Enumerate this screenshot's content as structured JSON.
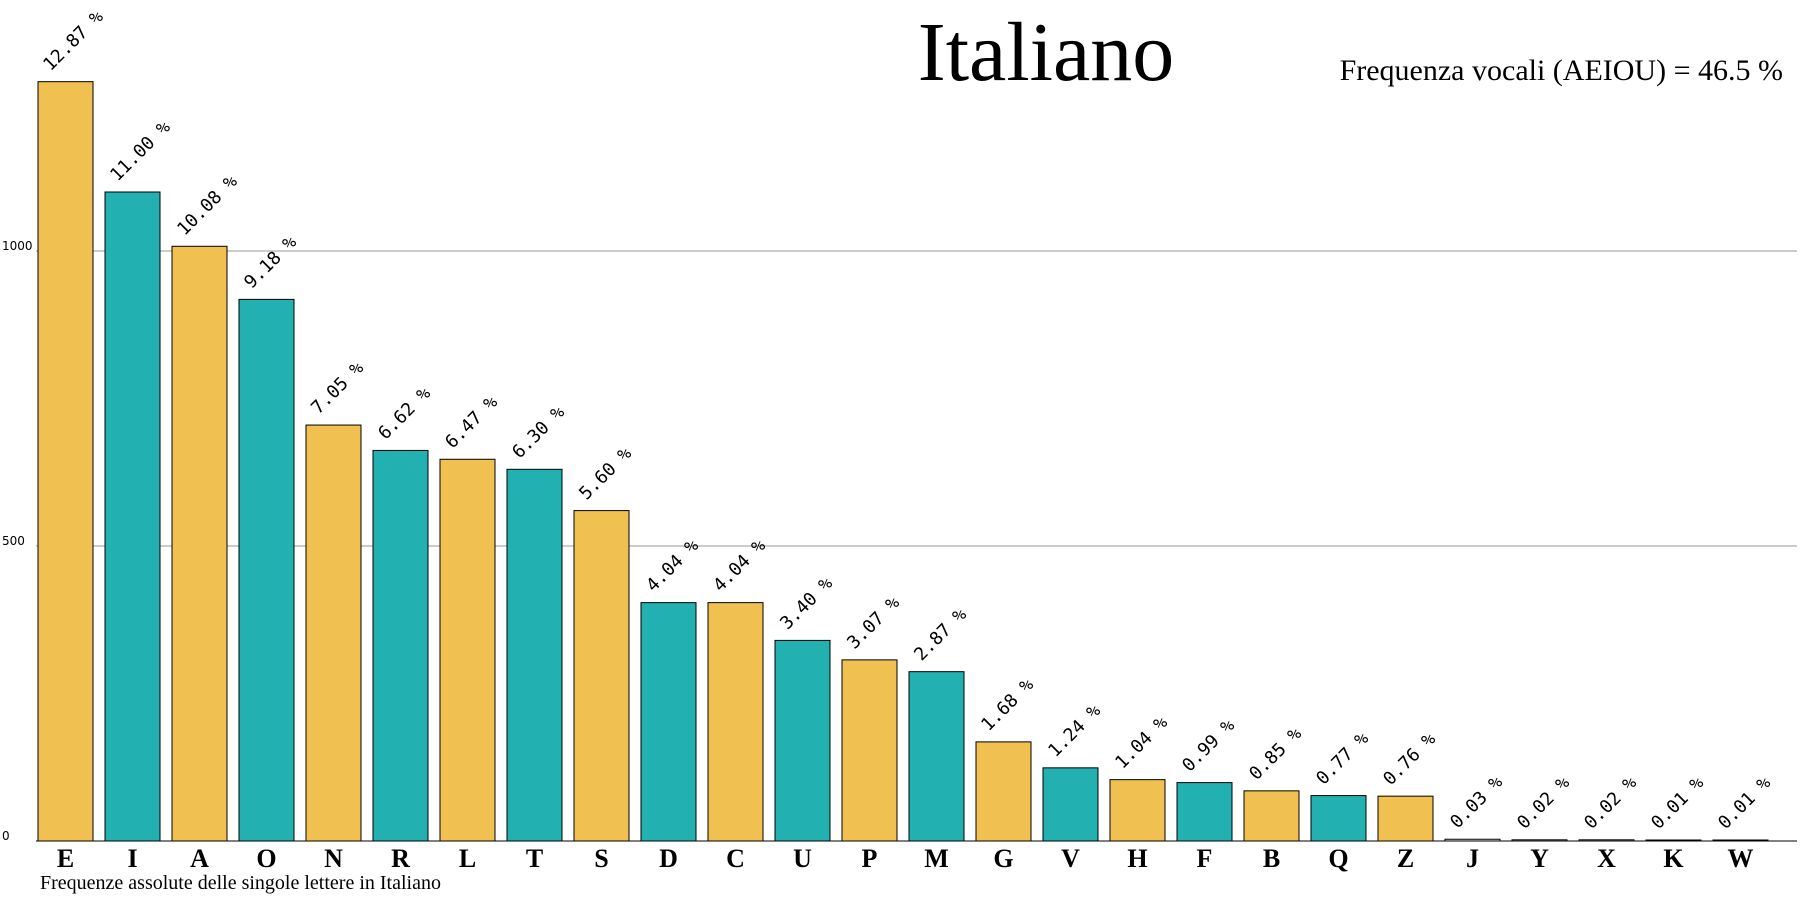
{
  "chart_data": {
    "type": "bar",
    "title": "Italiano",
    "subtitle": "Frequenza vocali (AEIOU) = 46.5 %",
    "caption": "Frequenze assolute delle singole lettere in Italiano",
    "categories": [
      "E",
      "I",
      "A",
      "O",
      "N",
      "R",
      "L",
      "T",
      "S",
      "D",
      "C",
      "U",
      "P",
      "M",
      "G",
      "V",
      "H",
      "F",
      "B",
      "Q",
      "Z",
      "J",
      "Y",
      "X",
      "K",
      "W"
    ],
    "values": [
      1287,
      1100,
      1008,
      918,
      705,
      662,
      647,
      630,
      560,
      404,
      404,
      340,
      307,
      287,
      168,
      124,
      104,
      99,
      85,
      77,
      76,
      3,
      2,
      2,
      1,
      1
    ],
    "labels": [
      "12.87 %",
      "11.00 %",
      "10.08 %",
      "9.18 %",
      "7.05 %",
      "6.62 %",
      "6.47 %",
      "6.30 %",
      "5.60 %",
      "4.04 %",
      "4.04 %",
      "3.40 %",
      "3.07 %",
      "2.87 %",
      "1.68 %",
      "1.24 %",
      "1.04 %",
      "0.99 %",
      "0.85 %",
      "0.77 %",
      "0.76 %",
      "0.03 %",
      "0.02 %",
      "0.02 %",
      "0.01 %",
      "0.01 %"
    ],
    "colors": [
      "#f0c050",
      "#22b0b0",
      "#f0c050",
      "#22b0b0",
      "#f0c050",
      "#22b0b0",
      "#f0c050",
      "#22b0b0",
      "#f0c050",
      "#22b0b0",
      "#f0c050",
      "#22b0b0",
      "#f0c050",
      "#22b0b0",
      "#f0c050",
      "#22b0b0",
      "#f0c050",
      "#22b0b0",
      "#f0c050",
      "#22b0b0",
      "#f0c050",
      "#e8e8e8",
      "#e8e8e8",
      "#e8e8e8",
      "#e8e8e8",
      "#e8e8e8"
    ],
    "yticks": [
      0,
      500,
      1000
    ],
    "ylim": [
      0,
      1400
    ],
    "grid": true,
    "grid_color": "#9a9a9a"
  }
}
